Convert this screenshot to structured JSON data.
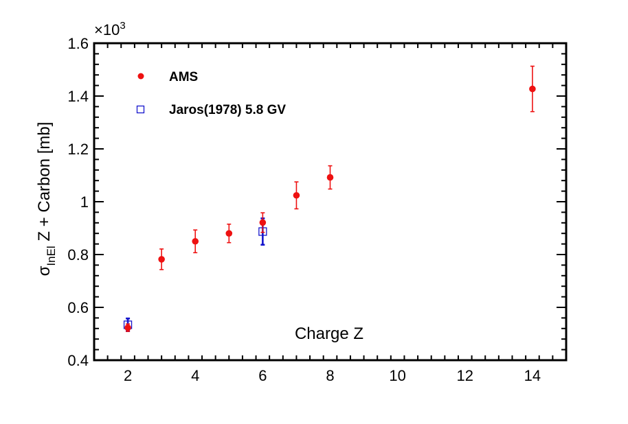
{
  "chart_data": {
    "type": "scatter",
    "xlabel": "Charge Z",
    "ylabel": {
      "sigma": "σ",
      "subscript": "InEl",
      "rest": " Z + Carbon [mb]"
    },
    "y_multiplier": "×10",
    "y_multiplier_exp": "3",
    "xlim": [
      1,
      15
    ],
    "ylim": [
      0.4,
      1.6
    ],
    "x_ticks": [
      2,
      4,
      6,
      8,
      10,
      12,
      14
    ],
    "x_tick_labels": [
      "2",
      "4",
      "6",
      "8",
      "10",
      "12",
      "14"
    ],
    "y_ticks": [
      0.4,
      0.6,
      0.8,
      1.0,
      1.2,
      1.4,
      1.6
    ],
    "y_tick_labels": [
      "0.4",
      "0.6",
      "0.8",
      "1",
      "1.2",
      "1.4",
      "1.6"
    ],
    "grid": false,
    "legend_position": "top-left",
    "series": [
      {
        "name": "AMS",
        "marker": "filled-circle",
        "color": "#ee1111",
        "points": [
          {
            "x": 2,
            "y": 0.523,
            "err": 0.014
          },
          {
            "x": 3,
            "y": 0.782,
            "err": 0.039
          },
          {
            "x": 4,
            "y": 0.85,
            "err": 0.043
          },
          {
            "x": 5,
            "y": 0.88,
            "err": 0.035
          },
          {
            "x": 6,
            "y": 0.921,
            "err": 0.037
          },
          {
            "x": 7,
            "y": 1.024,
            "err": 0.051
          },
          {
            "x": 8,
            "y": 1.092,
            "err": 0.044
          },
          {
            "x": 14,
            "y": 1.427,
            "err": 0.086
          }
        ]
      },
      {
        "name": "Jaros(1978) 5.8 GV",
        "marker": "open-square",
        "color": "#1515cc",
        "points": [
          {
            "x": 2,
            "y": 0.534,
            "err": 0.024
          },
          {
            "x": 6,
            "y": 0.887,
            "err": 0.05
          }
        ]
      }
    ]
  }
}
